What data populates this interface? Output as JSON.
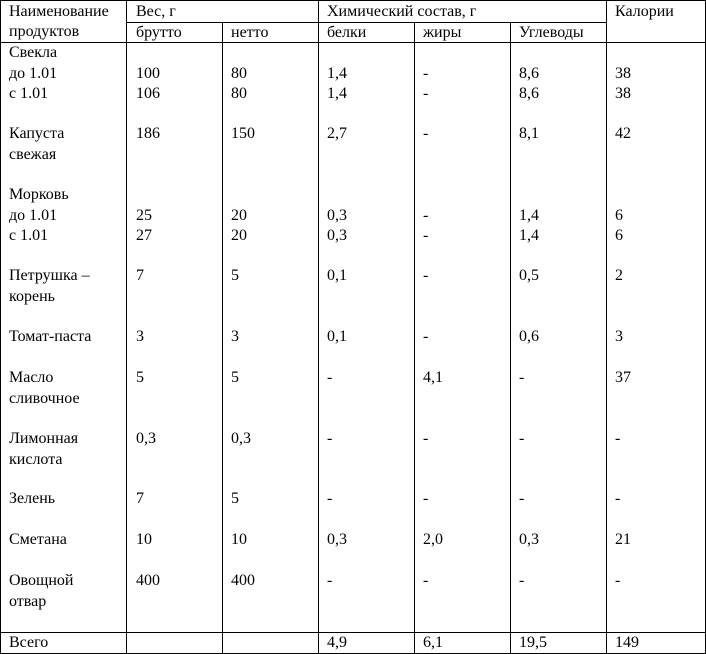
{
  "header": {
    "name": [
      "Наименование",
      "продуктов"
    ],
    "weight": "Вес, г",
    "brutto": "брутто",
    "netto": "нетто",
    "chem": "Химический состав, г",
    "protein": "белки",
    "fat": "жиры",
    "carbs": "Углеводы",
    "calories": "Калории"
  },
  "rows": [
    {
      "name": [
        "Свекла",
        "до 1.01",
        "с 1.01"
      ],
      "brutto": [
        "",
        "100",
        "106"
      ],
      "netto": [
        "",
        "80",
        "80"
      ],
      "protein": [
        "",
        "1,4",
        "1,4"
      ],
      "fat": [
        "",
        "-",
        "-"
      ],
      "carbs": [
        "",
        "8,6",
        "8,6"
      ],
      "calories": [
        "",
        "38",
        "38"
      ]
    },
    {
      "name": [
        "Капуста",
        "свежая"
      ],
      "brutto": [
        "186"
      ],
      "netto": [
        "150"
      ],
      "protein": [
        "2,7"
      ],
      "fat": [
        "-"
      ],
      "carbs": [
        "8,1"
      ],
      "calories": [
        "42"
      ]
    },
    {
      "name": [
        "Морковь",
        "до 1.01",
        "с 1.01"
      ],
      "brutto": [
        "",
        "25",
        "27"
      ],
      "netto": [
        "",
        "20",
        "20"
      ],
      "protein": [
        "",
        "0,3",
        "0,3"
      ],
      "fat": [
        "",
        "-",
        "-"
      ],
      "carbs": [
        "",
        "1,4",
        "1,4"
      ],
      "calories": [
        "",
        "6",
        "6"
      ]
    },
    {
      "name": [
        "Петрушка –",
        "корень"
      ],
      "brutto": [
        "7"
      ],
      "netto": [
        "5"
      ],
      "protein": [
        "0,1"
      ],
      "fat": [
        "-"
      ],
      "carbs": [
        "0,5"
      ],
      "calories": [
        "2"
      ]
    },
    {
      "name": [
        "Томат-паста"
      ],
      "brutto": [
        "3"
      ],
      "netto": [
        "3"
      ],
      "protein": [
        "0,1"
      ],
      "fat": [
        "-"
      ],
      "carbs": [
        "0,6"
      ],
      "calories": [
        "3"
      ]
    },
    {
      "name": [
        "Масло",
        "сливочное"
      ],
      "brutto": [
        "5"
      ],
      "netto": [
        "5"
      ],
      "protein": [
        "-"
      ],
      "fat": [
        "4,1"
      ],
      "carbs": [
        "-"
      ],
      "calories": [
        "37"
      ]
    },
    {
      "name": [
        "Лимонная",
        "кислота"
      ],
      "brutto": [
        "0,3"
      ],
      "netto": [
        "0,3"
      ],
      "protein": [
        "-"
      ],
      "fat": [
        "-"
      ],
      "carbs": [
        "-"
      ],
      "calories": [
        "-"
      ]
    },
    {
      "name": [
        "Зелень"
      ],
      "brutto": [
        "7"
      ],
      "netto": [
        "5"
      ],
      "protein": [
        "-"
      ],
      "fat": [
        "-"
      ],
      "carbs": [
        "-"
      ],
      "calories": [
        "-"
      ]
    },
    {
      "name": [
        "Сметана"
      ],
      "brutto": [
        "10"
      ],
      "netto": [
        "10"
      ],
      "protein": [
        "0,3"
      ],
      "fat": [
        "2,0"
      ],
      "carbs": [
        "0,3"
      ],
      "calories": [
        "21"
      ]
    },
    {
      "name": [
        "Овощной",
        "отвар"
      ],
      "brutto": [
        "400"
      ],
      "netto": [
        "400"
      ],
      "protein": [
        "-"
      ],
      "fat": [
        "-"
      ],
      "carbs": [
        "-"
      ],
      "calories": [
        "-"
      ]
    }
  ],
  "total": {
    "name": "Всего",
    "protein": "4,9",
    "fat": "6,1",
    "carbs": "19,5",
    "calories": "149"
  }
}
